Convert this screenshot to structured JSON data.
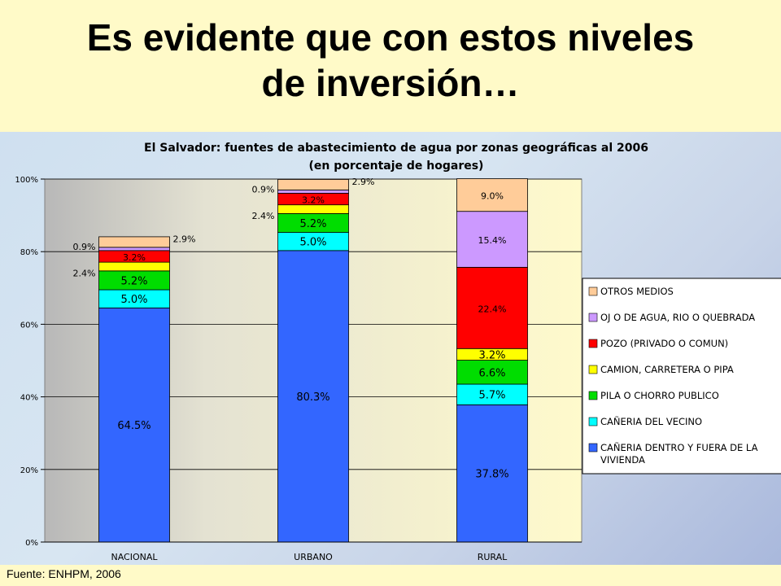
{
  "slide": {
    "title_line1": "Es evidente que con estos niveles",
    "title_line2": "de inversión…",
    "source": "Fuente: ENHPM, 2006"
  },
  "chart_data": {
    "type": "bar",
    "stacked": true,
    "title_line1": "El Salvador: fuentes de abastecimiento de agua por zonas geográficas al 2006",
    "title_line2": "(en porcentaje de hogares)",
    "categories": [
      "NACIONAL",
      "URBANO",
      "RURAL"
    ],
    "y_tick_labels": [
      "0%",
      "20%",
      "40%",
      "60%",
      "80%",
      "100%"
    ],
    "ylim": [
      0,
      100
    ],
    "grid": true,
    "legend_position": "right",
    "series": [
      {
        "name": "CAÑERIA DENTRO Y FUERA DE LA VIVIENDA",
        "color": "#3366ff",
        "values": [
          64.5,
          80.3,
          37.8
        ],
        "labels": [
          "64.5%",
          "80.3%",
          "37.8%"
        ]
      },
      {
        "name": "CAÑERIA DEL VECINO",
        "color": "#00ffff",
        "values": [
          5.0,
          5.0,
          5.7
        ],
        "labels": [
          "5.0%",
          "5.0%",
          "5.7%"
        ]
      },
      {
        "name": "PILA O CHORRO PUBLICO",
        "color": "#00dd00",
        "values": [
          5.2,
          5.2,
          6.6
        ],
        "labels": [
          "5.2%",
          "5.2%",
          "6.6%"
        ]
      },
      {
        "name": "CAMION, CARRETERA O PIPA",
        "color": "#ffff00",
        "values": [
          2.4,
          2.4,
          3.2
        ],
        "labels": [
          "2.4%",
          "2.4%",
          "3.2%"
        ]
      },
      {
        "name": "POZO (PRIVADO O COMUN)",
        "color": "#ff0000",
        "values": [
          3.2,
          3.2,
          22.4
        ],
        "labels": [
          "3.2%",
          "3.2%",
          "22.4%"
        ]
      },
      {
        "name": "OJ O DE AGUA, RIO O QUEBRADA",
        "color": "#cc99ff",
        "values": [
          0.9,
          0.9,
          15.4
        ],
        "labels": [
          "0.9%",
          "0.9%",
          "15.4%"
        ]
      },
      {
        "name": "OTROS MEDIOS",
        "color": "#ffcc99",
        "values": [
          2.9,
          2.9,
          9.0
        ],
        "labels": [
          "2.9%",
          "2.9%",
          "9.0%"
        ]
      }
    ],
    "legend_order": [
      6,
      5,
      4,
      3,
      2,
      1,
      0
    ]
  }
}
